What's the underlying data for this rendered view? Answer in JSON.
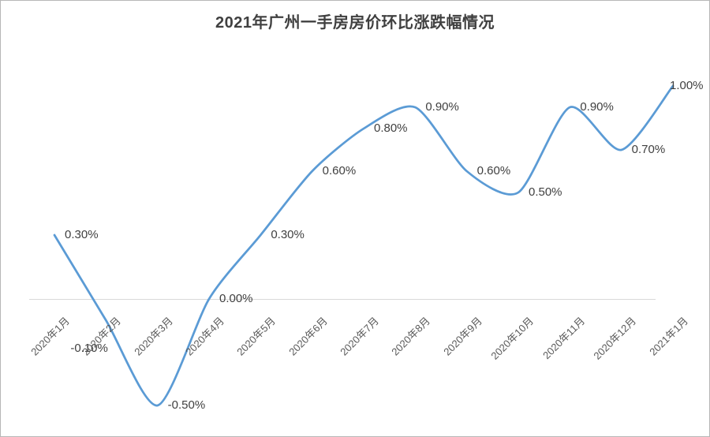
{
  "title": "2021年广州一手房房价环比涨跌幅情况",
  "chart_data": {
    "type": "line",
    "title": "2021年广州一手房房价环比涨跌幅情况",
    "categories": [
      "2020年1月",
      "2020年2月",
      "2020年3月",
      "2020年4月",
      "2020年5月",
      "2020年6月",
      "2020年7月",
      "2020年8月",
      "2020年9月",
      "2020年10月",
      "2020年11月",
      "2020年12月",
      "2021年1月"
    ],
    "values": [
      0.3,
      -0.1,
      -0.5,
      0.0,
      0.3,
      0.6,
      0.8,
      0.9,
      0.6,
      0.5,
      0.9,
      0.7,
      1.0
    ],
    "data_labels": [
      "0.30%",
      "-0.10%",
      "-0.50%",
      "0.00%",
      "0.30%",
      "0.60%",
      "0.80%",
      "0.90%",
      "0.60%",
      "0.50%",
      "0.90%",
      "0.70%",
      "1.00%"
    ],
    "unit": "%",
    "xlabel": "",
    "ylabel": "",
    "ylim": [
      -0.6,
      1.1
    ],
    "grid": "zero-line-only",
    "legend": "none",
    "smoothed_line": true,
    "line_color": "#5B9BD5",
    "data_label_color": "#404040",
    "axis_label_color": "#595959",
    "gridline_color": "#D9D9D9",
    "title_color": "#404040",
    "background_color": "#FFFFFF",
    "frame_border_color": "#B7B7B7"
  }
}
